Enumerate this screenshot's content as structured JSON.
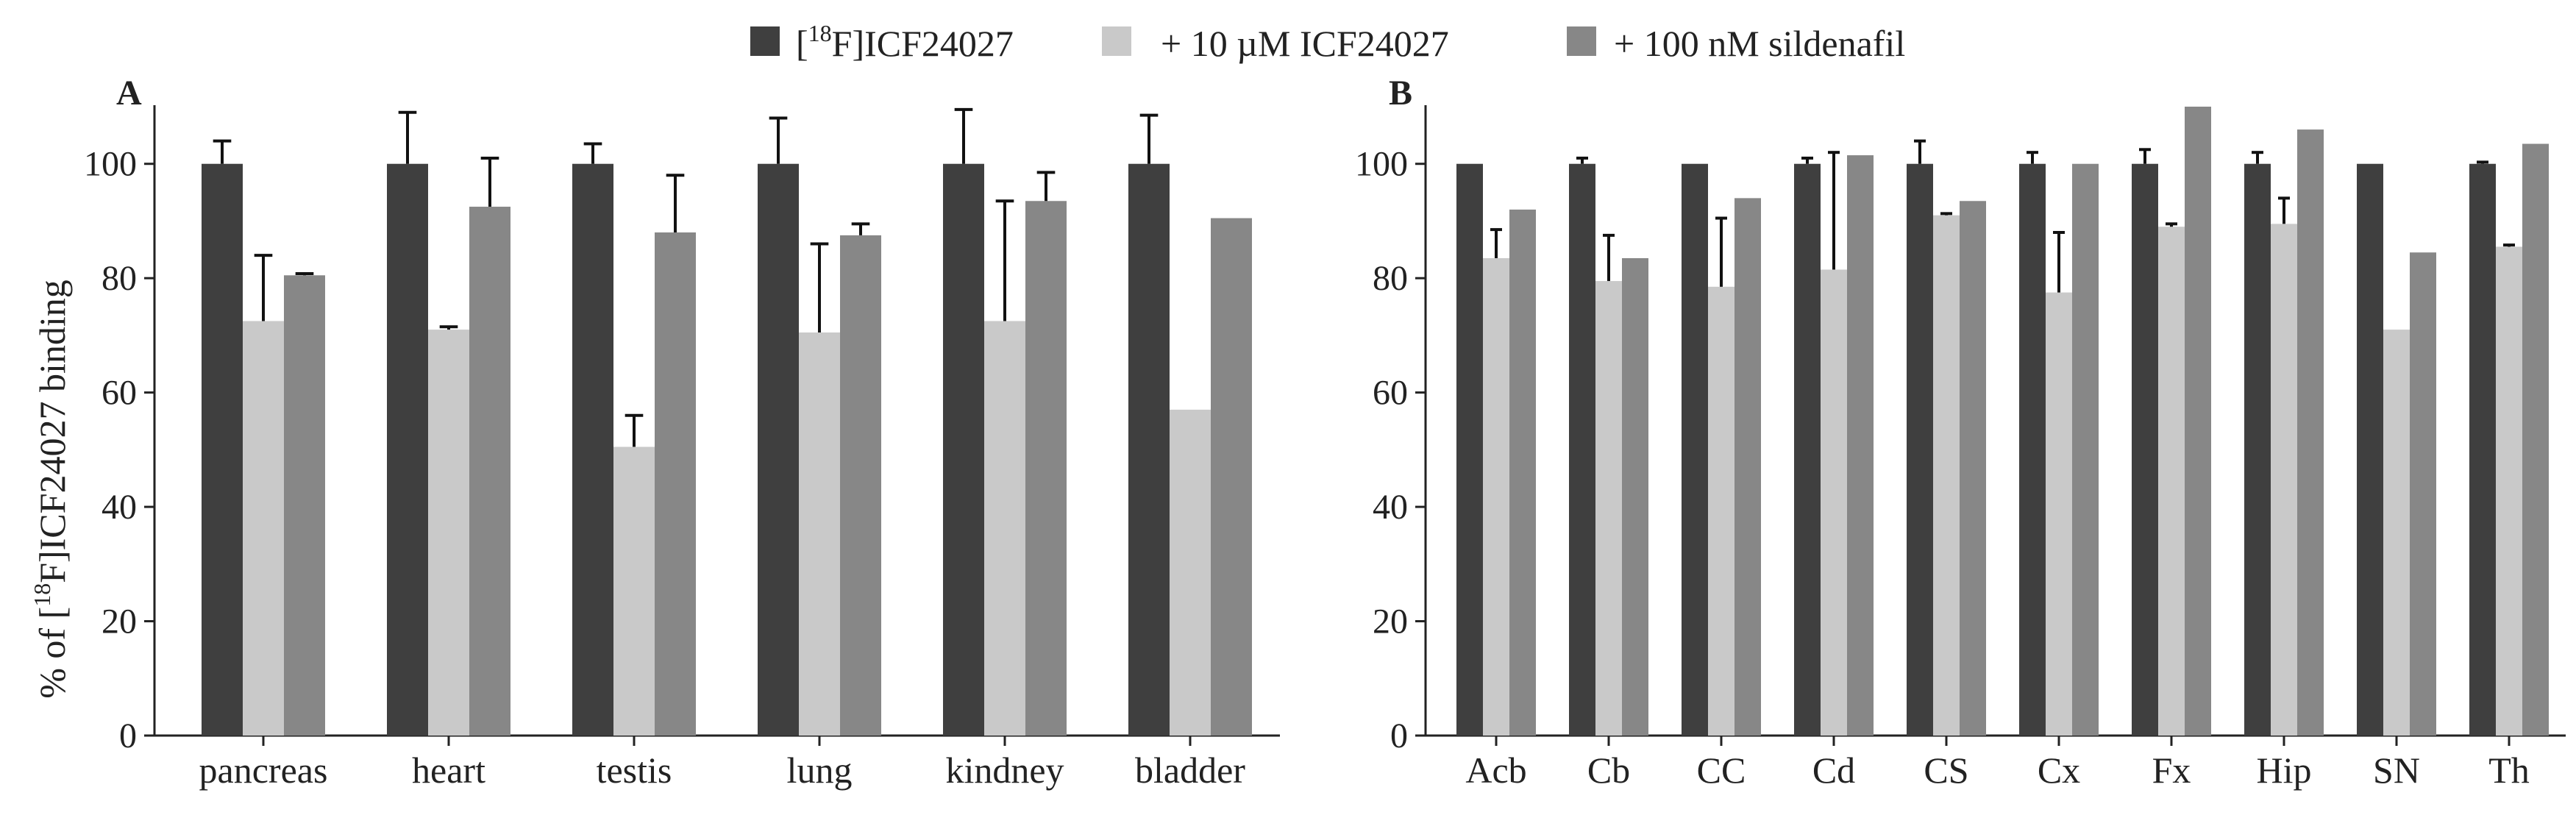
{
  "legend": {
    "series_a_prefix": "[",
    "series_a_sup": "18",
    "series_a_suffix": "F]ICF24027",
    "series_b": "+ 10 µM ICF24027",
    "series_c": "+ 100 nM sildenafil"
  },
  "colors": {
    "series_a": "#3f3f3f",
    "series_b": "#c9c9c9",
    "series_c": "#878787",
    "axis": "#222222"
  },
  "ylabel": {
    "prefix": "% of [",
    "sup": "18",
    "suffix": "F]ICF24027 binding"
  },
  "chart_data": [
    {
      "type": "bar",
      "panel": "A",
      "title": "",
      "xlabel": "",
      "ylabel": "% of [18F]ICF24027 binding",
      "ylim": [
        0,
        110
      ],
      "yticks": [
        0,
        20,
        40,
        60,
        80,
        100
      ],
      "categories": [
        "pancreas",
        "heart",
        "testis",
        "lung",
        "kindney",
        "bladder"
      ],
      "series": [
        {
          "name": "[18F]ICF24027",
          "values": [
            100,
            100,
            100,
            100,
            100,
            100
          ],
          "errors": [
            4,
            9,
            3.5,
            8,
            9.5,
            8.5
          ]
        },
        {
          "name": "+ 10 µM ICF24027",
          "values": [
            72.5,
            71,
            50.5,
            70.5,
            72.5,
            57
          ],
          "errors": [
            11.5,
            0.5,
            5.5,
            15.5,
            21,
            0
          ]
        },
        {
          "name": "+ 100 nM sildenafil",
          "values": [
            80.5,
            92.5,
            88,
            87.5,
            93.5,
            90.5
          ],
          "errors": [
            0.3,
            8.5,
            10,
            2,
            5,
            0
          ]
        }
      ]
    },
    {
      "type": "bar",
      "panel": "B",
      "title": "",
      "xlabel": "",
      "ylabel": "",
      "ylim": [
        0,
        110
      ],
      "yticks": [
        0,
        20,
        40,
        60,
        80,
        100
      ],
      "categories": [
        "Acb",
        "Cb",
        "CC",
        "Cd",
        "CS",
        "Cx",
        "Fx",
        "Hip",
        "SN",
        "Th"
      ],
      "series": [
        {
          "name": "[18F]ICF24027",
          "values": [
            100,
            100,
            100,
            100,
            100,
            100,
            100,
            100,
            100,
            100
          ],
          "errors": [
            0,
            1,
            0,
            1,
            4,
            2,
            2.5,
            2,
            0,
            0.3
          ]
        },
        {
          "name": "+ 10 µM ICF24027",
          "values": [
            83.5,
            79.5,
            78.5,
            81.5,
            91,
            77.5,
            89,
            89.5,
            71,
            85.5
          ],
          "errors": [
            5,
            8,
            12,
            20.5,
            0.3,
            10.5,
            0.5,
            4.5,
            0,
            0.3
          ]
        },
        {
          "name": "+ 100 nM sildenafil",
          "values": [
            92,
            83.5,
            94,
            101.5,
            93.5,
            100,
            110,
            106,
            84.5,
            103.5
          ],
          "errors": [
            0,
            0,
            0,
            0,
            0,
            0,
            0,
            0,
            0,
            0
          ]
        }
      ]
    }
  ]
}
